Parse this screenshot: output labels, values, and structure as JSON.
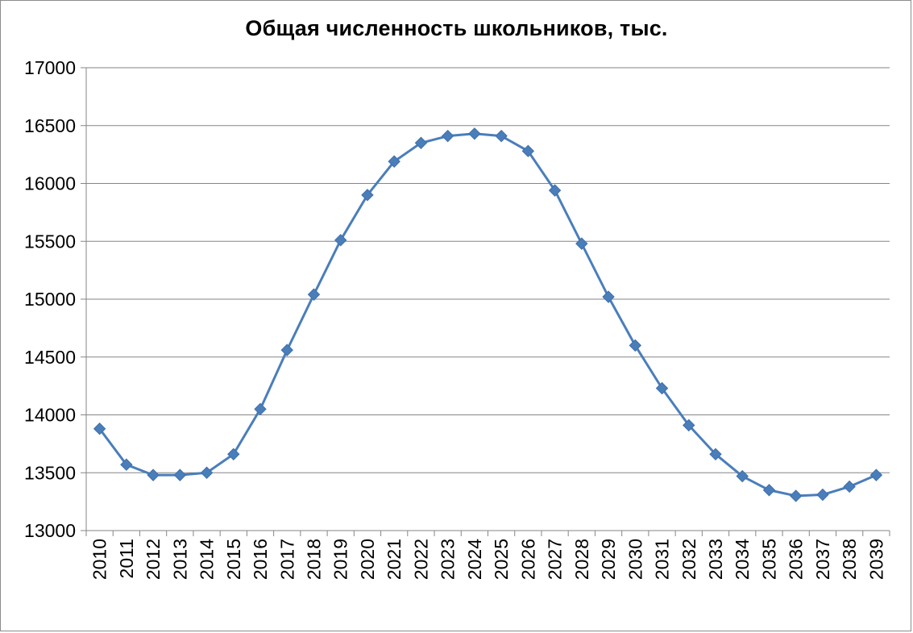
{
  "chart_data": {
    "type": "line",
    "title": "Общая численность школьников, тыс.",
    "xlabel": "",
    "ylabel": "",
    "ylim": [
      13000,
      17000
    ],
    "yticks": [
      "13000",
      "13500",
      "14000",
      "14500",
      "15000",
      "15500",
      "16000",
      "16500",
      "17000"
    ],
    "grid": true,
    "legend": "none",
    "series_color": "#4a7ebb",
    "categories": [
      "2010",
      "2011",
      "2012",
      "2013",
      "2014",
      "2015",
      "2016",
      "2017",
      "2018",
      "2019",
      "2020",
      "2021",
      "2022",
      "2023",
      "2024",
      "2025",
      "2026",
      "2027",
      "2028",
      "2029",
      "2030",
      "2031",
      "2032",
      "2033",
      "2034",
      "2035",
      "2036",
      "2037",
      "2038",
      "2039"
    ],
    "values": [
      13880,
      13570,
      13480,
      13480,
      13500,
      13660,
      14050,
      14560,
      15040,
      15510,
      15900,
      16190,
      16350,
      16410,
      16430,
      16410,
      16280,
      15940,
      15480,
      15020,
      14600,
      14230,
      13910,
      13660,
      13470,
      13350,
      13300,
      13310,
      13380,
      13480
    ]
  }
}
